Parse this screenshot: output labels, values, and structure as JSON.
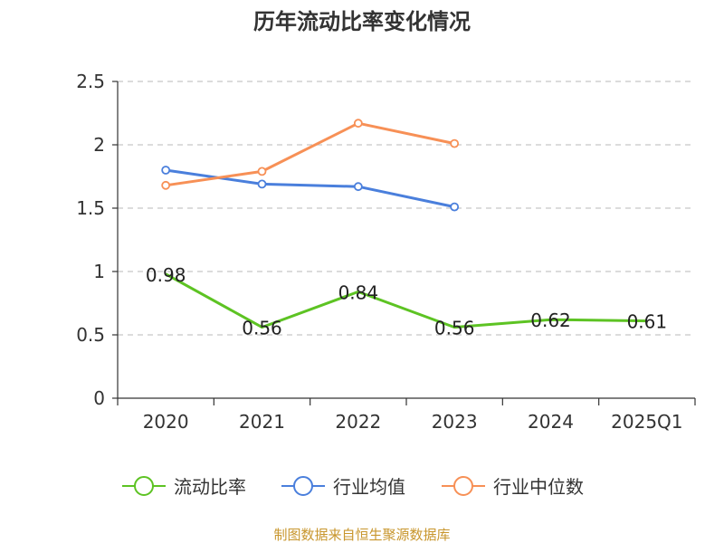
{
  "chart_data": {
    "type": "line",
    "title": "历年流动比率变化情况",
    "categories": [
      "2020",
      "2021",
      "2022",
      "2023",
      "2024",
      "2025Q1"
    ],
    "ylim": [
      0,
      2.5
    ],
    "yticks": [
      "0",
      "0.5",
      "1",
      "1.5",
      "2",
      "2.5"
    ],
    "grid": true,
    "legend_position": "bottom",
    "series": [
      {
        "name": "流动比率",
        "color": "#5dc323",
        "values": [
          0.98,
          0.56,
          0.84,
          0.56,
          0.62,
          0.61
        ],
        "labels": [
          "0.98",
          "0.56",
          "0.84",
          "0.56",
          "0.62",
          "0.61"
        ]
      },
      {
        "name": "行业均值",
        "color": "#4a7fdc",
        "values": [
          1.8,
          1.69,
          1.67,
          1.51,
          null,
          null
        ]
      },
      {
        "name": "行业中位数",
        "color": "#f79056",
        "values": [
          1.68,
          1.79,
          2.17,
          2.01,
          null,
          null
        ]
      }
    ]
  },
  "footer": {
    "source": "制图数据来自恒生聚源数据库",
    "source_color": "#c8962d"
  }
}
